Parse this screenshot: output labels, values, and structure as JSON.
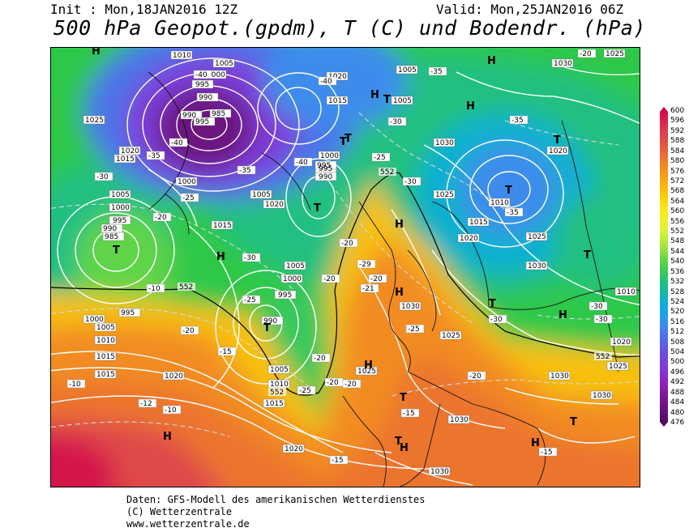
{
  "header": {
    "init": "Init : Mon,18JAN2016 12Z",
    "valid": "Valid: Mon,25JAN2016 06Z",
    "title": "500 hPa Geopot.(gpdm), T (C) und Bodendr. (hPa)"
  },
  "legend": {
    "labels": [
      "600",
      "596",
      "592",
      "588",
      "584",
      "580",
      "576",
      "572",
      "568",
      "564",
      "560",
      "556",
      "552",
      "548",
      "544",
      "540",
      "536",
      "532",
      "528",
      "524",
      "520",
      "516",
      "512",
      "508",
      "504",
      "500",
      "496",
      "492",
      "488",
      "484",
      "480",
      "476"
    ],
    "colors": [
      "#c8004b",
      "#d4164c",
      "#dc3250",
      "#e04848",
      "#e65c3e",
      "#ec742e",
      "#f28c20",
      "#f6a814",
      "#f8c010",
      "#fad60c",
      "#fce81a",
      "#f0f02a",
      "#d8f03c",
      "#b8ea3c",
      "#90e03e",
      "#60d448",
      "#38c85c",
      "#20c080",
      "#14b8a8",
      "#10b0d0",
      "#20a0e8",
      "#3c8cec",
      "#4c74e8",
      "#5c60e4",
      "#6c4ce0",
      "#7c3cd8",
      "#8a2ccc",
      "#8c20b8",
      "#7c1898",
      "#6c1280",
      "#5c0c68",
      "#4c0858"
    ]
  },
  "map": {
    "pressure_labels": [
      "1010",
      "1005",
      "1000",
      "995",
      "990",
      "985",
      "980",
      "1015",
      "1020",
      "1025",
      "1030"
    ],
    "temperature_labels": [
      "-40",
      "-35",
      "-30",
      "-25",
      "-20",
      "-15",
      "-10"
    ],
    "highs": "H",
    "lows": "T",
    "contour_552": "552"
  },
  "footer": {
    "line1": "Daten: GFS-Modell des amerikanischen Wetterdienstes",
    "line2": "(C) Wetterzentrale",
    "line3": "www.wetterzentrale.de"
  }
}
